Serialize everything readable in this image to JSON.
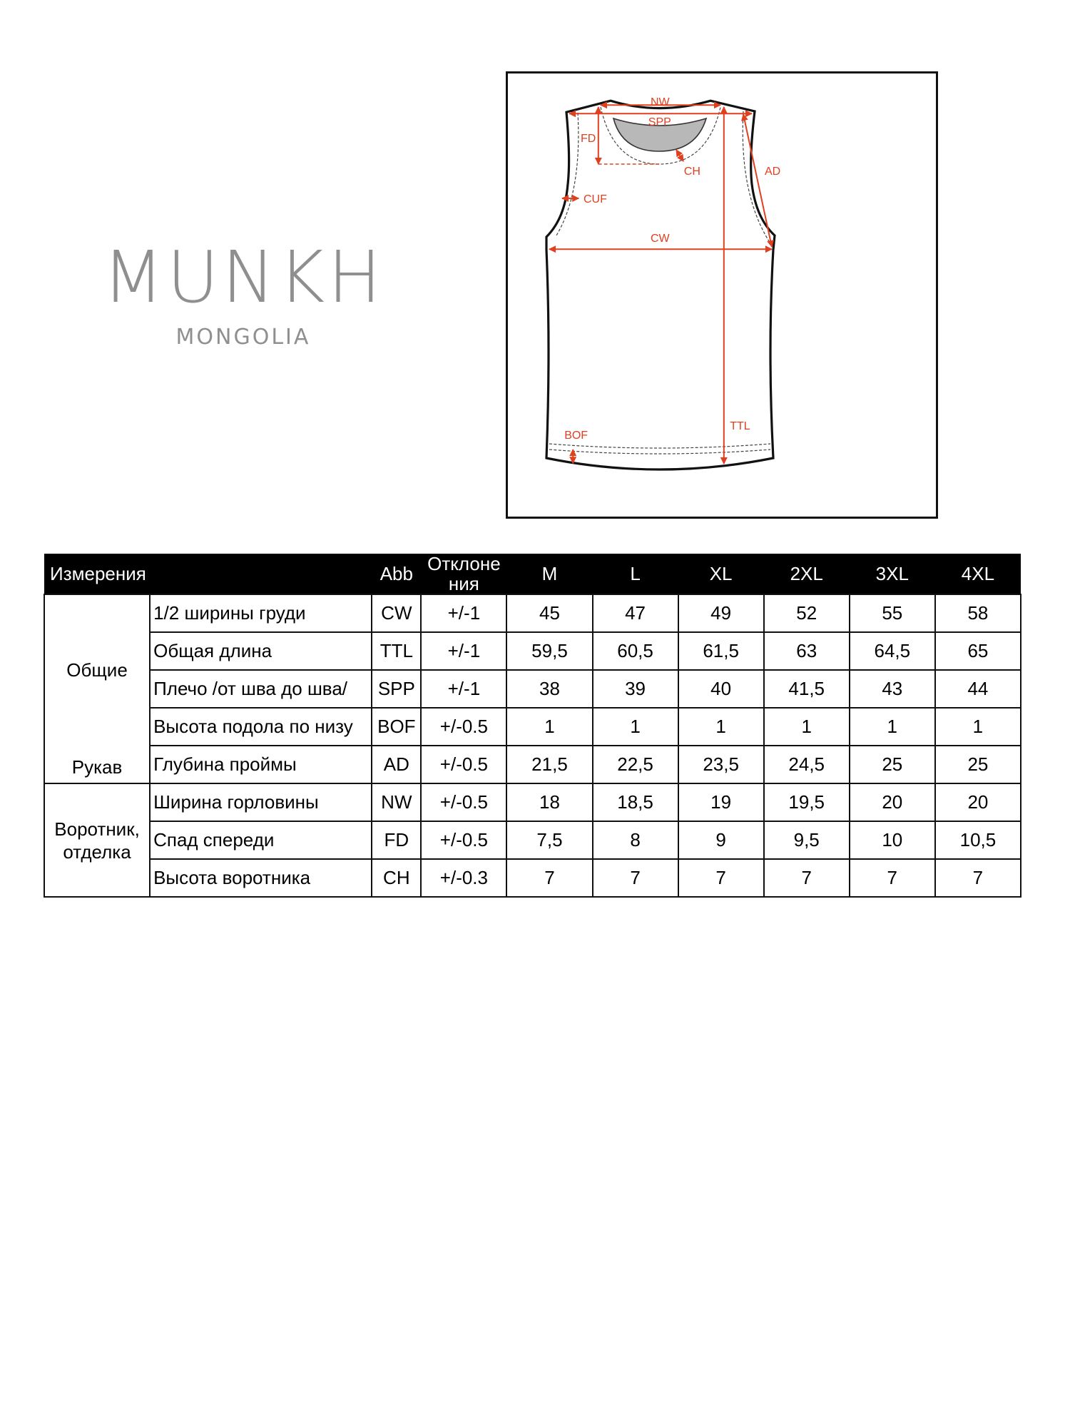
{
  "logo": {
    "brand": "MUNKH",
    "sub": "MONGOLIA"
  },
  "diagram": {
    "labels": [
      "NW",
      "SPP",
      "FD",
      "CH",
      "AD",
      "CUF",
      "CW",
      "TTL",
      "BOF"
    ],
    "accent_color": "#e0401f"
  },
  "table": {
    "headers": {
      "measure": "Измерения",
      "abb": "Abb",
      "tolerance": "Отклоне ния",
      "sizes": [
        "M",
        "L",
        "XL",
        "2XL",
        "3XL",
        "4XL"
      ]
    },
    "groups": {
      "general": "Общие",
      "sleeve": "Рукав",
      "collar": "Воротник, отделка"
    },
    "rows": [
      {
        "name": "1/2 ширины груди",
        "abb": "CW",
        "tol": "+/-1",
        "values": [
          "45",
          "47",
          "49",
          "52",
          "55",
          "58"
        ]
      },
      {
        "name": "Общая длина",
        "abb": "TTL",
        "tol": "+/-1",
        "values": [
          "59,5",
          "60,5",
          "61,5",
          "63",
          "64,5",
          "65"
        ]
      },
      {
        "name": "Плечо /от шва до шва/",
        "abb": "SPP",
        "tol": "+/-1",
        "values": [
          "38",
          "39",
          "40",
          "41,5",
          "43",
          "44"
        ]
      },
      {
        "name": "Высота подола по низу",
        "abb": "BOF",
        "tol": "+/-0.5",
        "values": [
          "1",
          "1",
          "1",
          "1",
          "1",
          "1"
        ]
      },
      {
        "name": "Глубина проймы",
        "abb": "AD",
        "tol": "+/-0.5",
        "values": [
          "21,5",
          "22,5",
          "23,5",
          "24,5",
          "25",
          "25"
        ]
      },
      {
        "name": "Ширина горловины",
        "abb": "NW",
        "tol": "+/-0.5",
        "values": [
          "18",
          "18,5",
          "19",
          "19,5",
          "20",
          "20"
        ]
      },
      {
        "name": "Спад спереди",
        "abb": "FD",
        "tol": "+/-0.5",
        "values": [
          "7,5",
          "8",
          "9",
          "9,5",
          "10",
          "10,5"
        ]
      },
      {
        "name": "Высота воротника",
        "abb": "CH",
        "tol": "+/-0.3",
        "values": [
          "7",
          "7",
          "7",
          "7",
          "7",
          "7"
        ]
      }
    ]
  }
}
